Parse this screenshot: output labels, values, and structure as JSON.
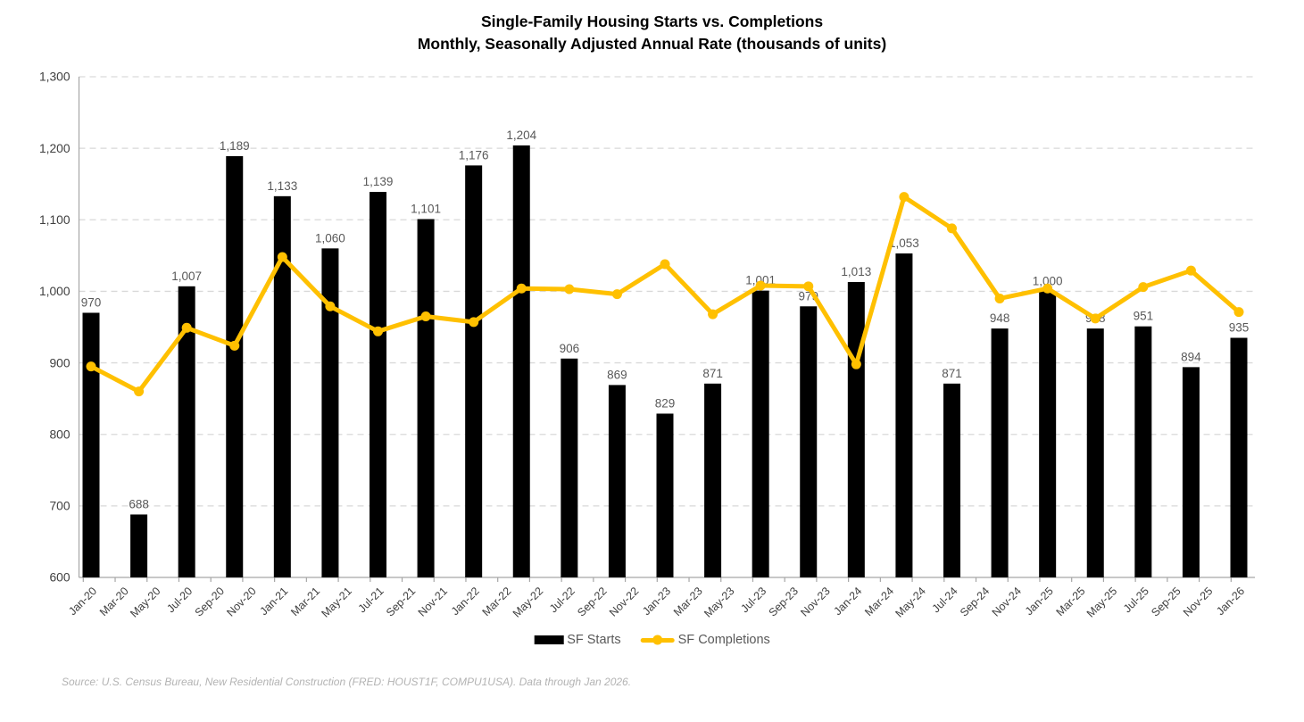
{
  "title": {
    "line1": "Single-Family Housing Starts vs. Completions",
    "line2": "Monthly, Seasonally Adjusted Annual Rate (thousands of units)"
  },
  "legend": {
    "starts_label": "SF Starts",
    "completions_label": "SF Completions"
  },
  "source_note": "Source: U.S. Census Bureau, New Residential Construction (FRED: HOUST1F, COMPU1USA). Data through Jan 2026.",
  "colors": {
    "bar": "#000000",
    "line": "#FFC000",
    "bar_data_label": "#595959",
    "axis_tick_label": "#3f3f3f",
    "gridline": "#d9d9d9",
    "axis_line": "#a6a6a6",
    "legend_text": "#595959",
    "source_text": "#b3b3b3",
    "background": "#ffffff"
  },
  "chart_data": {
    "type": "bar",
    "title": "Single-Family Housing Starts vs. Completions",
    "subtitle": "Monthly, Seasonally Adjusted Annual Rate (thousands of units)",
    "xlabel": "",
    "ylabel": "",
    "ylim": [
      600,
      1300
    ],
    "y_ticks": [
      600,
      700,
      800,
      900,
      1000,
      1100,
      1200,
      1300
    ],
    "grid": "horizontal-dashed",
    "legend_position": "bottom",
    "x_tick_label_rotation": -45,
    "x_tick_labels": [
      "Jan-20",
      "Mar-20",
      "May-20",
      "Jul-20",
      "Sep-20",
      "Nov-20",
      "Jan-21",
      "Mar-21",
      "May-21",
      "Jul-21",
      "Sep-21",
      "Nov-21",
      "Jan-22",
      "Mar-22",
      "May-22",
      "Jul-22",
      "Sep-22",
      "Nov-22",
      "Jan-23",
      "Mar-23",
      "May-23",
      "Jul-23",
      "Sep-23",
      "Nov-23",
      "Jan-24",
      "Mar-24",
      "May-24",
      "Jul-24",
      "Sep-24",
      "Nov-24",
      "Jan-25",
      "Mar-25",
      "May-25",
      "Jul-25",
      "Sep-25",
      "Nov-25",
      "Jan-26"
    ],
    "layout_hint": "25 bar/line data points are spread evenly across the same axis span as the 37 tick labels; bar values are labeled above each bar, line values are unlabeled (estimated from pixel positions)",
    "series": [
      {
        "name": "SF Starts",
        "type": "bar",
        "color": "#000000",
        "values": [
          970,
          688,
          1007,
          1189,
          1133,
          1060,
          1139,
          1101,
          1176,
          1204,
          906,
          869,
          829,
          871,
          1001,
          979,
          1013,
          1053,
          871,
          948,
          1000,
          948,
          951,
          894,
          935
        ]
      },
      {
        "name": "SF Completions",
        "type": "line",
        "color": "#FFC000",
        "values": [
          895,
          860,
          949,
          924,
          1048,
          979,
          944,
          965,
          957,
          1004,
          1003,
          996,
          1038,
          968,
          1008,
          1007,
          898,
          1132,
          1088,
          990,
          1004,
          962,
          1006,
          1029,
          971
        ]
      }
    ]
  }
}
